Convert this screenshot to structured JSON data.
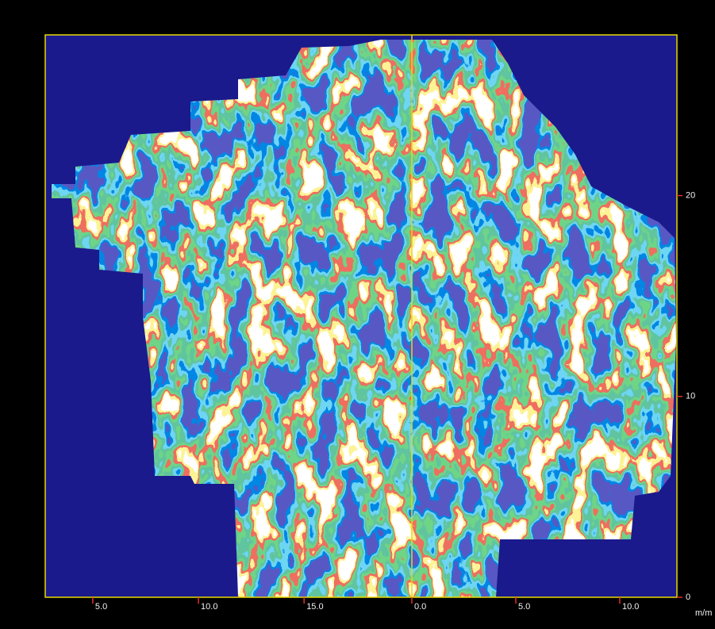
{
  "chart_data": {
    "type": "survey-map",
    "panels": [
      {
        "xlim": [
          2.75,
          20.1
        ],
        "xticks": [
          {
            "value": 5,
            "label": "5.0"
          },
          {
            "value": 10,
            "label": "10.0"
          },
          {
            "value": 15,
            "label": "15.0"
          }
        ]
      },
      {
        "xlim": [
          0,
          12.75
        ],
        "xticks": [
          {
            "value": 0,
            "label": "0.0"
          },
          {
            "value": 5,
            "label": "5.0"
          },
          {
            "value": 10,
            "label": "10.0"
          }
        ]
      }
    ],
    "ylim": [
      0,
      28
    ],
    "yticks": [
      0,
      10,
      20
    ],
    "x_unit_label": "m/m"
  }
}
